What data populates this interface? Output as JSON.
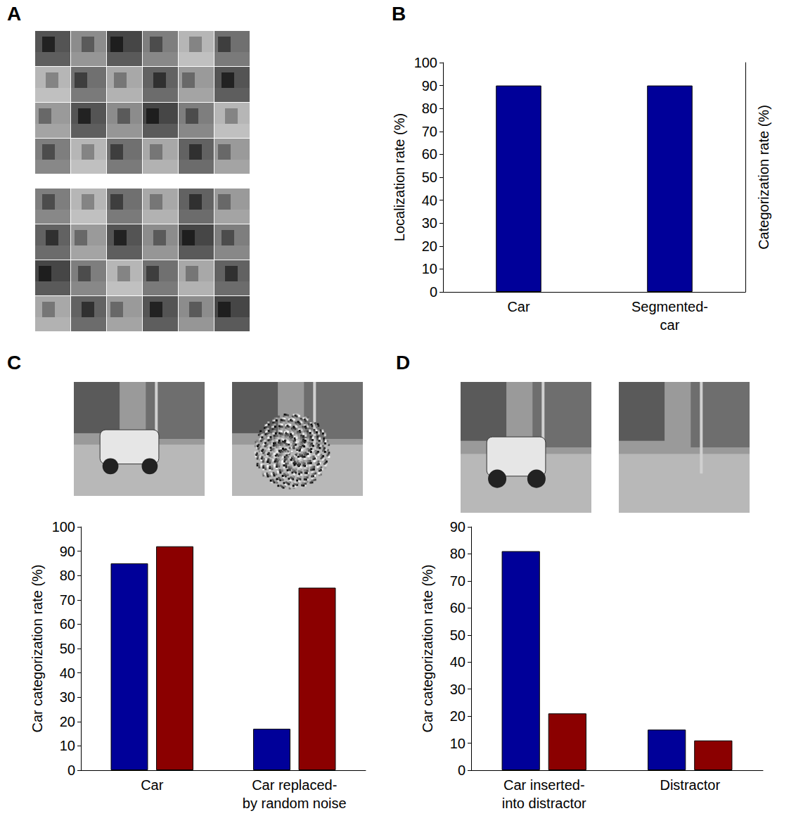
{
  "images_panel": {
    "panel": "A"
  },
  "chart_data": [
    {
      "panel": "B",
      "type": "bar",
      "categories": [
        "Car",
        "Segmented-car"
      ],
      "values": [
        90,
        90
      ],
      "color": "#000099",
      "ylabel": "Localization rate (%)",
      "y2label": "Categorization rate (%)",
      "ylim": [
        0,
        100
      ],
      "yticks": [
        0,
        10,
        20,
        30,
        40,
        50,
        60,
        70,
        80,
        90,
        100
      ],
      "grid": false
    },
    {
      "panel": "C",
      "type": "bar",
      "categories": [
        "Car",
        "Car replaced-by random noise"
      ],
      "series": [
        {
          "color": "#000099",
          "values": [
            85,
            17
          ]
        },
        {
          "color": "#8b0000",
          "values": [
            92,
            75
          ]
        }
      ],
      "ylabel": "Car categorization rate (%)",
      "ylim": [
        0,
        100
      ],
      "yticks": [
        0,
        10,
        20,
        30,
        40,
        50,
        60,
        70,
        80,
        90,
        100
      ],
      "grid": false
    },
    {
      "panel": "D",
      "type": "bar",
      "categories": [
        "Car inserted-into distractor",
        "Distractor"
      ],
      "series": [
        {
          "color": "#000099",
          "values": [
            81,
            15
          ]
        },
        {
          "color": "#8b0000",
          "values": [
            21,
            11
          ]
        }
      ],
      "ylabel": "Car categorization rate (%)",
      "ylim": [
        0,
        90
      ],
      "yticks": [
        0,
        10,
        20,
        30,
        40,
        50,
        60,
        70,
        80,
        90
      ],
      "grid": false
    }
  ]
}
